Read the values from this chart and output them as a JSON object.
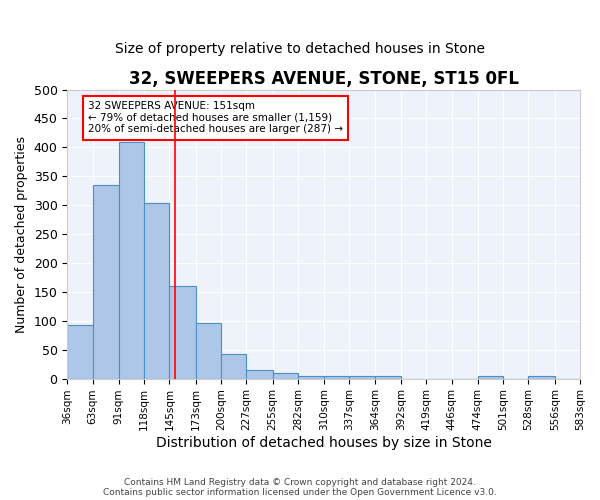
{
  "title": "32, SWEEPERS AVENUE, STONE, ST15 0FL",
  "subtitle": "Size of property relative to detached houses in Stone",
  "xlabel": "Distribution of detached houses by size in Stone",
  "ylabel": "Number of detached properties",
  "bar_edges": [
    36,
    63,
    91,
    118,
    145,
    173,
    200,
    227,
    255,
    282,
    310,
    337,
    364,
    392,
    419,
    446,
    474,
    501,
    528,
    556,
    583
  ],
  "bar_values": [
    93,
    335,
    410,
    303,
    161,
    97,
    42,
    15,
    9,
    5,
    5,
    5,
    5,
    0,
    0,
    0,
    4,
    0,
    4,
    0
  ],
  "bar_color": "#aec6e8",
  "bar_edgecolor": "#4a90c4",
  "property_size": 151,
  "annotation_text": "32 SWEEPERS AVENUE: 151sqm\n← 79% of detached houses are smaller (1,159)\n20% of semi-detached houses are larger (287) →",
  "annotation_box_color": "white",
  "annotation_box_edgecolor": "red",
  "vline_color": "red",
  "ylim": [
    0,
    500
  ],
  "yticks": [
    0,
    50,
    100,
    150,
    200,
    250,
    300,
    350,
    400,
    450,
    500
  ],
  "background_color": "#eef2fb",
  "footer_line1": "Contains HM Land Registry data © Crown copyright and database right 2024.",
  "footer_line2": "Contains public sector information licensed under the Open Government Licence v3.0.",
  "title_fontsize": 12,
  "subtitle_fontsize": 10,
  "xlabel_fontsize": 10,
  "ylabel_fontsize": 9,
  "tick_label_fontsize": 7.5
}
